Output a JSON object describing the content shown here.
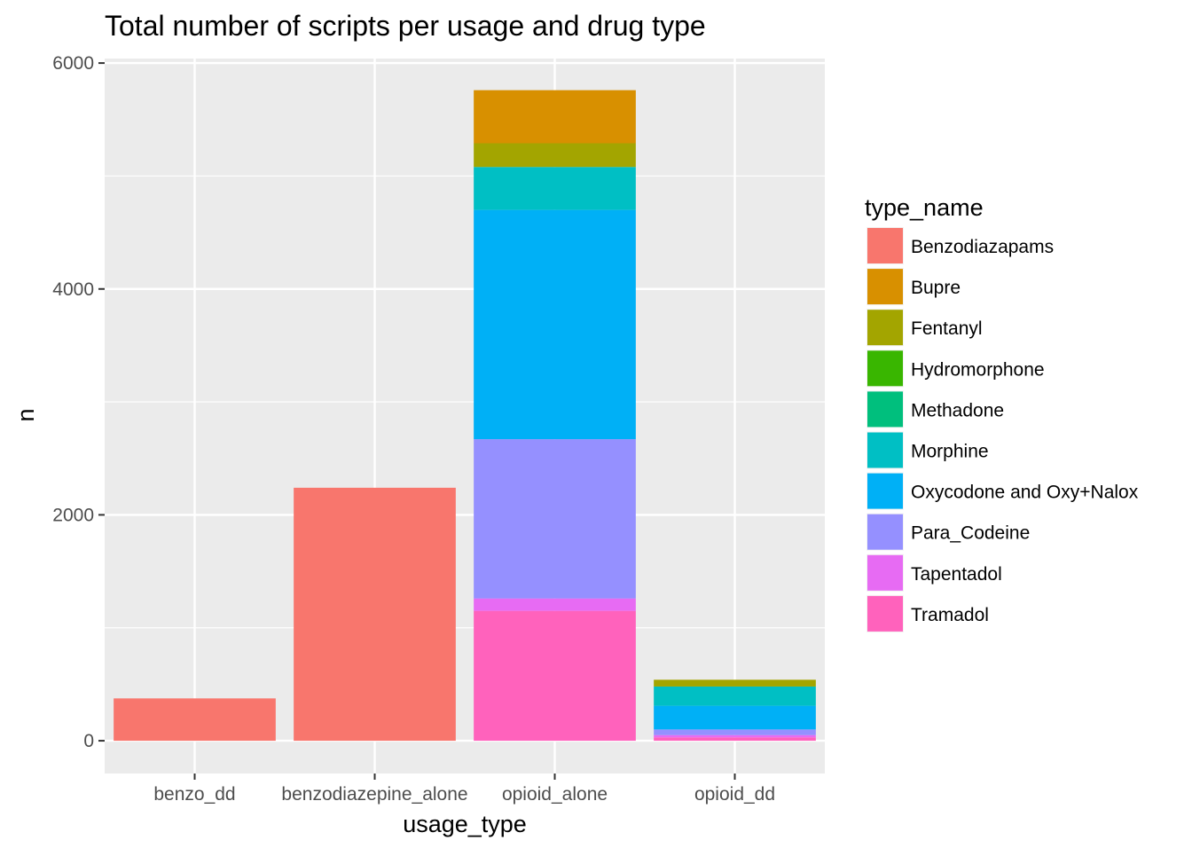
{
  "chart_data": {
    "type": "bar",
    "stacked": true,
    "title": "Total number of scripts per usage and drug type",
    "xlabel": "usage_type",
    "ylabel": "n",
    "categories": [
      "benzo_dd",
      "benzodiazepine_alone",
      "opioid_alone",
      "opioid_dd"
    ],
    "ylim": [
      -290,
      6040
    ],
    "yticks": [
      0,
      2000,
      4000,
      6000
    ],
    "yticks_labels": [
      "0",
      "2000",
      "4000",
      "6000"
    ],
    "grid": true,
    "legend": {
      "title": "type_name",
      "position": "right"
    },
    "series": [
      {
        "name": "Benzodiazapams",
        "color": "#F8766D",
        "values": [
          375,
          2240,
          0,
          0
        ]
      },
      {
        "name": "Bupre",
        "color": "#D89000",
        "values": [
          0,
          0,
          470,
          0
        ]
      },
      {
        "name": "Fentanyl",
        "color": "#A3A500",
        "values": [
          0,
          0,
          210,
          60
        ]
      },
      {
        "name": "Hydromorphone",
        "color": "#39B600",
        "values": [
          0,
          0,
          0,
          0
        ]
      },
      {
        "name": "Methadone",
        "color": "#00BF7D",
        "values": [
          0,
          0,
          0,
          0
        ]
      },
      {
        "name": "Morphine",
        "color": "#00BFC4",
        "values": [
          0,
          0,
          380,
          170
        ]
      },
      {
        "name": "Oxycodone and Oxy+Nalox",
        "color": "#00B0F6",
        "values": [
          0,
          0,
          2030,
          210
        ]
      },
      {
        "name": "Para_Codeine",
        "color": "#9590FF",
        "values": [
          0,
          0,
          1410,
          50
        ]
      },
      {
        "name": "Tapentadol",
        "color": "#E76BF3",
        "values": [
          0,
          0,
          110,
          20
        ]
      },
      {
        "name": "Tramadol",
        "color": "#FF62BC",
        "values": [
          0,
          0,
          1150,
          30
        ]
      }
    ]
  }
}
